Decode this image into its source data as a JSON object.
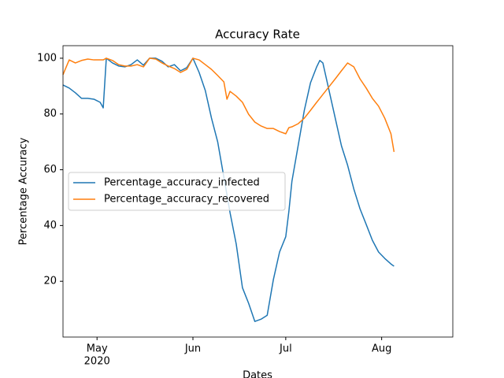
{
  "chart_data": {
    "type": "line",
    "title": "Accuracy Rate",
    "xlabel": "Dates",
    "ylabel": "Percentage Accuracy",
    "x": [
      "2020-04-20",
      "2020-04-22",
      "2020-04-24",
      "2020-04-26",
      "2020-04-28",
      "2020-04-30",
      "2020-05-02",
      "2020-05-03",
      "2020-05-04",
      "2020-05-06",
      "2020-05-08",
      "2020-05-10",
      "2020-05-12",
      "2020-05-14",
      "2020-05-16",
      "2020-05-18",
      "2020-05-20",
      "2020-05-22",
      "2020-05-24",
      "2020-05-26",
      "2020-05-28",
      "2020-05-30",
      "2020-06-01",
      "2020-06-03",
      "2020-06-05",
      "2020-06-07",
      "2020-06-09",
      "2020-06-11",
      "2020-06-12",
      "2020-06-13",
      "2020-06-15",
      "2020-06-17",
      "2020-06-19",
      "2020-06-21",
      "2020-06-23",
      "2020-06-25",
      "2020-06-27",
      "2020-06-29",
      "2020-07-01",
      "2020-07-02",
      "2020-07-03",
      "2020-07-05",
      "2020-07-07",
      "2020-07-09",
      "2020-07-11",
      "2020-07-12",
      "2020-07-13",
      "2020-07-15",
      "2020-07-17",
      "2020-07-19",
      "2020-07-21",
      "2020-07-23",
      "2020-07-25",
      "2020-07-27",
      "2020-07-29",
      "2020-07-31",
      "2020-08-02",
      "2020-08-04",
      "2020-08-05"
    ],
    "series": [
      {
        "name": "Percentage_accuracy_infected",
        "color": "#1f77b4",
        "values": [
          90.4,
          89.3,
          87.6,
          85.6,
          85.6,
          85.3,
          84.2,
          82.2,
          100,
          98.3,
          97.2,
          96.9,
          97.7,
          99.4,
          97.5,
          100,
          100,
          98.9,
          96.9,
          97.7,
          95.5,
          96.6,
          100,
          94.9,
          88.4,
          78.5,
          70,
          57.3,
          51,
          44.6,
          33.3,
          17.7,
          12.1,
          5.6,
          6.4,
          7.8,
          20.6,
          30.5,
          36,
          45,
          55.9,
          68.6,
          81.3,
          91.2,
          96.9,
          99.2,
          98.3,
          88.4,
          78.5,
          68.6,
          61.6,
          53.1,
          46,
          40.4,
          34.7,
          30.5,
          28.2,
          26.2,
          25.4
        ]
      },
      {
        "name": "Percentage_accuracy_recovered",
        "color": "#ff7f0e",
        "values": [
          94.1,
          99.4,
          98.3,
          99.2,
          99.7,
          99.4,
          99.4,
          99.4,
          100,
          99.2,
          97.7,
          97.2,
          97.2,
          97.7,
          96.9,
          100,
          99.7,
          98.3,
          97.2,
          96.3,
          94.9,
          96,
          100,
          99.4,
          97.7,
          96,
          93.8,
          91.5,
          85.3,
          88.1,
          86.4,
          84.2,
          79.9,
          77.1,
          75.7,
          74.8,
          74.8,
          73.7,
          72.9,
          75.1,
          75.4,
          76.5,
          78.5,
          81.3,
          84.2,
          85.6,
          87,
          89.8,
          92.6,
          95.5,
          98.3,
          96.9,
          92.6,
          89.3,
          85.6,
          82.8,
          78.5,
          72.9,
          66.4
        ]
      }
    ],
    "xlim": [
      "2020-04-20",
      "2020-08-24"
    ],
    "xticks": [
      {
        "value": "2020-05-01",
        "label": "May"
      },
      {
        "value": "2020-06-01",
        "label": "Jun"
      },
      {
        "value": "2020-07-01",
        "label": "Jul"
      },
      {
        "value": "2020-08-01",
        "label": "Aug"
      }
    ],
    "xtick_sublabels": [
      {
        "value": "2020-05-01",
        "label": "2020"
      }
    ],
    "ylim": [
      0,
      104.5
    ],
    "yticks": [
      20,
      40,
      60,
      80,
      100
    ],
    "legend": "center left"
  }
}
